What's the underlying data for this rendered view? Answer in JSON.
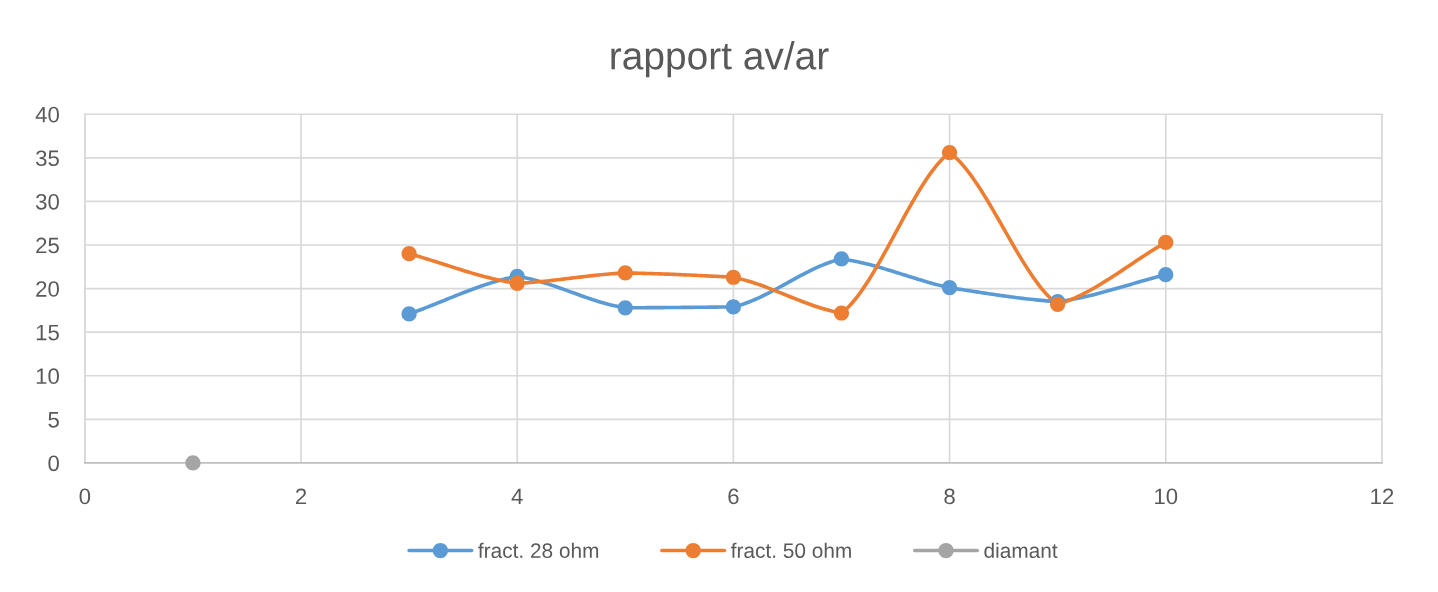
{
  "chart_data": {
    "type": "line",
    "title": "rapport av/ar",
    "xlim": [
      0,
      12
    ],
    "xticks": [
      0,
      2,
      4,
      6,
      8,
      10,
      12
    ],
    "ylim": [
      0,
      40
    ],
    "yticks": [
      0,
      5,
      10,
      15,
      20,
      25,
      30,
      35,
      40
    ],
    "grid": true,
    "legend": "bottom",
    "marker": "circle",
    "line_style": "solid",
    "series": [
      {
        "name": "fract. 28 ohm",
        "color": "#5b9bd5",
        "x": [
          3,
          4,
          5,
          6,
          7,
          8,
          9,
          10
        ],
        "values": [
          17.1,
          21.4,
          17.8,
          17.9,
          23.4,
          20.1,
          18.5,
          21.6
        ]
      },
      {
        "name": "fract. 50 ohm",
        "color": "#ed7d31",
        "x": [
          3,
          4,
          5,
          6,
          7,
          8,
          9,
          10
        ],
        "values": [
          24.0,
          20.6,
          21.8,
          21.3,
          17.2,
          35.6,
          18.2,
          25.3
        ]
      },
      {
        "name": "diamant",
        "color": "#a5a5a5",
        "x": [
          1
        ],
        "values": [
          0
        ]
      }
    ]
  }
}
